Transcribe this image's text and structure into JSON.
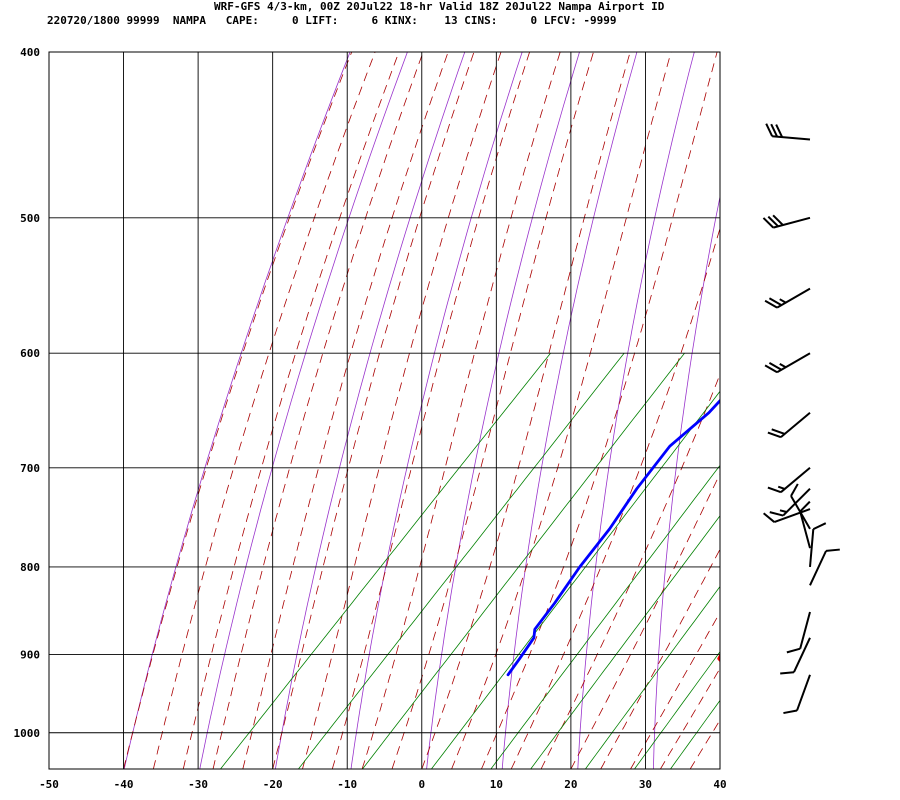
{
  "header": {
    "line1": "WRF-GFS 4/3-km, 00Z 20Jul22 18-hr Valid 18Z 20Jul22 Nampa Airport ID",
    "line2": "220720/1800 99999  NAMPA   CAPE:     0 LIFT:     6 KINX:    13 CINS:     0 LFCV: -9999"
  },
  "chart_data": {
    "type": "skew-t",
    "pressure_ticks": [
      {
        "p": 400,
        "label": "400"
      },
      {
        "p": 500,
        "label": "500"
      },
      {
        "p": 600,
        "label": "600"
      },
      {
        "p": 700,
        "label": "700"
      },
      {
        "p": 800,
        "label": "800"
      },
      {
        "p": 900,
        "label": "900"
      },
      {
        "p": 1000,
        "label": "1000"
      }
    ],
    "temp_ticks": [
      {
        "t": -50,
        "label": "-50"
      },
      {
        "t": -40,
        "label": "-40"
      },
      {
        "t": -30,
        "label": "-30"
      },
      {
        "t": -20,
        "label": "-20"
      },
      {
        "t": -10,
        "label": "-10"
      },
      {
        "t": 0,
        "label": "0"
      },
      {
        "t": 10,
        "label": "10"
      },
      {
        "t": 20,
        "label": "20"
      },
      {
        "t": 30,
        "label": "30"
      },
      {
        "t": 40,
        "label": "40"
      }
    ],
    "xlim": [
      -50,
      40
    ],
    "ylim_hpa": [
      400,
      1050
    ],
    "grid": true,
    "series": [
      {
        "color": "#ff0000",
        "points": [
          [
            925,
            31.3
          ],
          [
            922,
            29.7
          ],
          [
            905,
            26.5
          ],
          [
            880,
            25.5
          ],
          [
            865,
            25.2
          ],
          [
            840,
            24.3
          ],
          [
            800,
            20.2
          ],
          [
            740,
            16.6
          ],
          [
            680,
            11.5
          ],
          [
            630,
            7.2
          ],
          [
            600,
            3.5
          ],
          [
            555,
            1.6
          ],
          [
            500,
            -0.8
          ],
          [
            450,
            -1.5
          ]
        ]
      },
      {
        "color": "#0000ff",
        "points": [
          [
            925,
            0.2
          ],
          [
            905,
            -0.2
          ],
          [
            880,
            -0.8
          ],
          [
            870,
            -1.7
          ],
          [
            840,
            -2.2
          ],
          [
            800,
            -3.2
          ],
          [
            760,
            -3.8
          ],
          [
            720,
            -5.0
          ],
          [
            680,
            -5.7
          ],
          [
            650,
            -4.5
          ],
          [
            600,
            -4.3
          ],
          [
            553,
            -12.6
          ],
          [
            503,
            -24.2
          ],
          [
            500,
            -25.0
          ],
          [
            470,
            -25.5
          ],
          [
            450,
            -25.8
          ]
        ]
      }
    ],
    "wind_barbs": [
      {
        "p": 450,
        "dir": 275,
        "speed": 30
      },
      {
        "p": 500,
        "dir": 255,
        "speed": 30
      },
      {
        "p": 550,
        "dir": 240,
        "speed": 25
      },
      {
        "p": 600,
        "dir": 240,
        "speed": 25
      },
      {
        "p": 650,
        "dir": 230,
        "speed": 20
      },
      {
        "p": 700,
        "dir": 230,
        "speed": 15
      },
      {
        "p": 720,
        "dir": 225,
        "speed": 15
      },
      {
        "p": 740,
        "dir": 250,
        "speed": 10
      },
      {
        "p": 760,
        "dir": 330,
        "speed": 10
      },
      {
        "p": 780,
        "dir": 345,
        "speed": 10
      },
      {
        "p": 800,
        "dir": 5,
        "speed": 10
      },
      {
        "p": 820,
        "dir": 25,
        "speed": 10
      },
      {
        "p": 850,
        "dir": 195,
        "speed": 10
      },
      {
        "p": 880,
        "dir": 205,
        "speed": 10
      },
      {
        "p": 925,
        "dir": 200,
        "speed": 10
      }
    ],
    "colors": {
      "temperature": "#ff0000",
      "dewpoint": "#0000ff",
      "isotherm": "#000000",
      "dry_adiabat": "#9933cc",
      "moist_adiabat": "#aa0000",
      "mixing_ratio": "#008000"
    }
  }
}
